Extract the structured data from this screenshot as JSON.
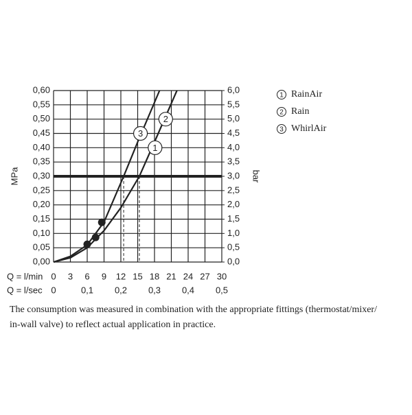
{
  "chart_data": {
    "type": "line",
    "xlabel": "Q = l/min",
    "x2label": "Q = l/sec",
    "ylabel": "MPa",
    "y2label": "bar",
    "xlim": [
      0,
      30
    ],
    "xticks": [
      0,
      3,
      6,
      9,
      12,
      15,
      18,
      21,
      24,
      27,
      30
    ],
    "x2lim": [
      0,
      0.5
    ],
    "x2ticks": [
      0,
      {
        "value": 0.1,
        "label": "0,1"
      },
      {
        "value": 0.2,
        "label": "0,2"
      },
      {
        "value": 0.3,
        "label": "0,3"
      },
      {
        "value": 0.4,
        "label": "0,4"
      },
      {
        "value": 0.5,
        "label": "0,5"
      }
    ],
    "ylim": [
      0,
      0.6
    ],
    "yticks": [
      {
        "value": 0,
        "label": "0,00"
      },
      {
        "value": 0.05,
        "label": "0,05"
      },
      {
        "value": 0.1,
        "label": "0,10"
      },
      {
        "value": 0.15,
        "label": "0,15"
      },
      {
        "value": 0.2,
        "label": "0,20"
      },
      {
        "value": 0.25,
        "label": "0,25"
      },
      {
        "value": 0.3,
        "label": "0,30"
      },
      {
        "value": 0.35,
        "label": "0,35"
      },
      {
        "value": 0.4,
        "label": "0,40"
      },
      {
        "value": 0.45,
        "label": "0,45"
      },
      {
        "value": 0.5,
        "label": "0,50"
      },
      {
        "value": 0.55,
        "label": "0,55"
      },
      {
        "value": 0.6,
        "label": "0,60"
      }
    ],
    "y2lim": [
      0,
      6
    ],
    "y2ticks": [
      {
        "value": 0,
        "label": "0,0"
      },
      {
        "value": 0.5,
        "label": "0,5"
      },
      {
        "value": 1,
        "label": "1,0"
      },
      {
        "value": 1.5,
        "label": "1,5"
      },
      {
        "value": 2,
        "label": "2,0"
      },
      {
        "value": 2.5,
        "label": "2,5"
      },
      {
        "value": 3,
        "label": "3,0"
      },
      {
        "value": 3.5,
        "label": "3,5"
      },
      {
        "value": 4,
        "label": "4,0"
      },
      {
        "value": 4.5,
        "label": "4,5"
      },
      {
        "value": 5,
        "label": "5,0"
      },
      {
        "value": 5.5,
        "label": "5,5"
      },
      {
        "value": 6,
        "label": "6,0"
      }
    ],
    "grid": true,
    "color": "#222222",
    "curves": [
      {
        "x": [
          0,
          3,
          6,
          9,
          12.5,
          15,
          18.9
        ],
        "y": [
          0,
          0.02,
          0.06,
          0.14,
          0.3,
          0.42,
          0.6
        ]
      },
      {
        "x": [
          0,
          3,
          6,
          9,
          12,
          15.3,
          18,
          20,
          22
        ],
        "y": [
          0,
          0.015,
          0.05,
          0.11,
          0.19,
          0.3,
          0.42,
          0.51,
          0.6
        ]
      }
    ],
    "points": {
      "x": [
        6.0,
        7.5,
        8.6
      ],
      "y": [
        0.062,
        0.086,
        0.139
      ]
    },
    "reference_y": 0.3,
    "reference_x": [
      12.5,
      15.3
    ],
    "annotations": [
      {
        "text": "3",
        "x": 15.5,
        "y": 0.45
      },
      {
        "text": "2",
        "x": 20.0,
        "y": 0.5
      },
      {
        "text": "1",
        "x": 18.1,
        "y": 0.4
      }
    ],
    "legend": [
      {
        "number": "1",
        "name": "RainAir"
      },
      {
        "number": "2",
        "name": "Rain"
      },
      {
        "number": "3",
        "name": "WhirlAir"
      }
    ],
    "footnote": [
      "The consumption was measured in combination with the appropriate fittings (thermostat/mixer/",
      "in-wall valve) to reflect actual application in practice."
    ]
  }
}
